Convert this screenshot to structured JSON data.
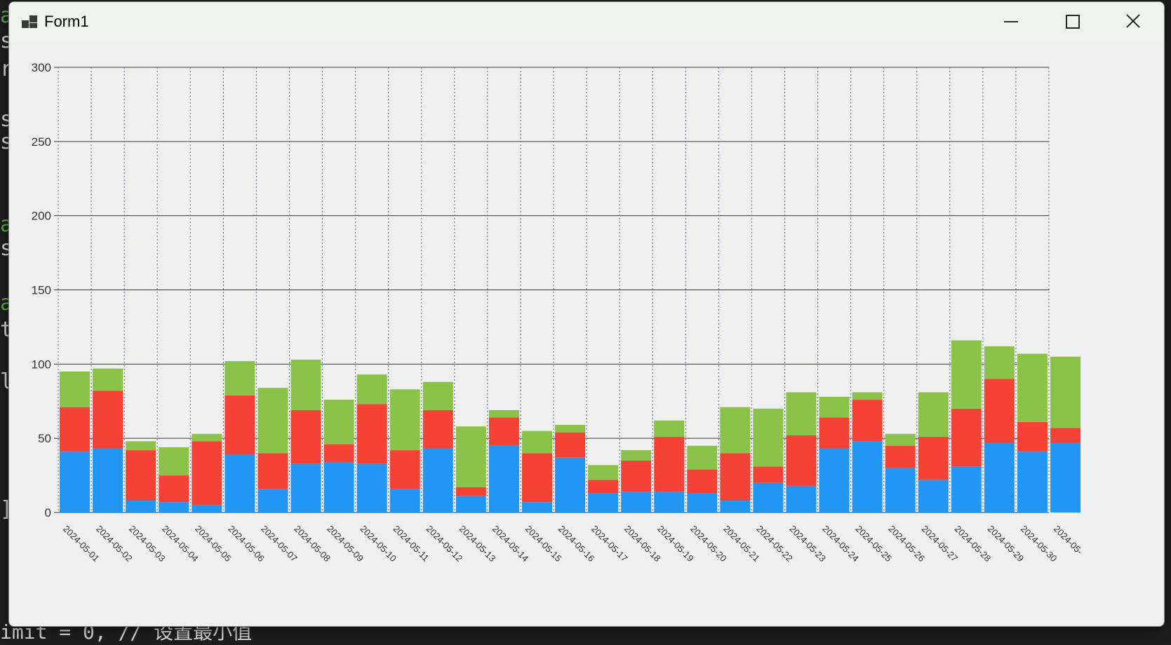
{
  "window": {
    "title": "Form1"
  },
  "window_controls": {
    "minimize_icon": "minimize-icon",
    "maximize_icon": "maximize-icon",
    "close_icon": "close-icon"
  },
  "background_code": {
    "bottom_line": "imit = 0, // 设置最小值"
  },
  "colors": {
    "series_blue": "#2196f3",
    "series_red": "#f44336",
    "series_green": "#8bc34a",
    "grid_major": "#3a3a3a",
    "grid_vertical": "#5a6a90",
    "background": "#f0f0f0"
  },
  "chart_data": {
    "type": "bar",
    "stacked": true,
    "ylim": [
      0,
      300
    ],
    "yticks": [
      0,
      50,
      100,
      150,
      200,
      250,
      300
    ],
    "grid": {
      "horizontal": "solid",
      "vertical": "dotted"
    },
    "legend": "none",
    "categories": [
      "2024-05-01",
      "2024-05-02",
      "2024-05-03",
      "2024-05-04",
      "2024-05-05",
      "2024-05-06",
      "2024-05-07",
      "2024-05-08",
      "2024-05-09",
      "2024-05-10",
      "2024-05-11",
      "2024-05-12",
      "2024-05-13",
      "2024-05-14",
      "2024-05-15",
      "2024-05-16",
      "2024-05-17",
      "2024-05-18",
      "2024-05-19",
      "2024-05-20",
      "2024-05-21",
      "2024-05-22",
      "2024-05-23",
      "2024-05-24",
      "2024-05-25",
      "2024-05-26",
      "2024-05-27",
      "2024-05-28",
      "2024-05-29",
      "2024-05-30",
      "2024-05-"
    ],
    "series": [
      {
        "color": "#2196f3",
        "values": [
          41,
          43,
          8,
          7,
          5,
          39,
          16,
          33,
          34,
          33,
          16,
          43,
          11,
          45,
          7,
          37,
          13,
          14,
          14,
          13,
          8,
          20,
          18,
          43,
          48,
          30,
          22,
          31,
          47,
          41,
          47
        ]
      },
      {
        "color": "#f44336",
        "values": [
          30,
          39,
          34,
          18,
          43,
          40,
          24,
          36,
          12,
          40,
          26,
          26,
          6,
          19,
          33,
          17,
          9,
          21,
          37,
          16,
          32,
          11,
          34,
          21,
          28,
          15,
          29,
          39,
          43,
          20,
          10
        ]
      },
      {
        "color": "#8bc34a",
        "values": [
          24,
          15,
          6,
          19,
          5,
          23,
          44,
          34,
          30,
          20,
          41,
          19,
          41,
          5,
          15,
          5,
          10,
          7,
          11,
          16,
          31,
          39,
          29,
          14,
          5,
          8,
          30,
          46,
          22,
          46,
          48
        ]
      }
    ]
  }
}
